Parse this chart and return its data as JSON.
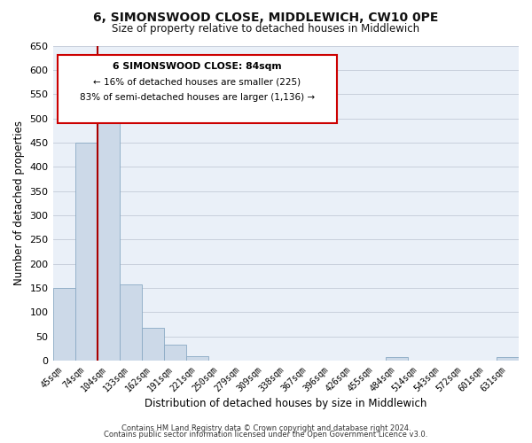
{
  "title": "6, SIMONSWOOD CLOSE, MIDDLEWICH, CW10 0PE",
  "subtitle": "Size of property relative to detached houses in Middlewich",
  "xlabel": "Distribution of detached houses by size in Middlewich",
  "ylabel": "Number of detached properties",
  "bar_labels": [
    "45sqm",
    "74sqm",
    "104sqm",
    "133sqm",
    "162sqm",
    "191sqm",
    "221sqm",
    "250sqm",
    "279sqm",
    "309sqm",
    "338sqm",
    "367sqm",
    "396sqm",
    "426sqm",
    "455sqm",
    "484sqm",
    "514sqm",
    "543sqm",
    "572sqm",
    "601sqm",
    "631sqm"
  ],
  "bar_values": [
    150,
    450,
    510,
    157,
    67,
    33,
    10,
    0,
    0,
    0,
    0,
    0,
    0,
    0,
    0,
    7,
    0,
    0,
    0,
    0,
    7
  ],
  "bar_color": "#ccd9e8",
  "bar_edge_color": "#8aaac4",
  "highlight_line_color": "#aa0000",
  "annotation_title": "6 SIMONSWOOD CLOSE: 84sqm",
  "annotation_line1": "← 16% of detached houses are smaller (225)",
  "annotation_line2": "83% of semi-detached houses are larger (1,136) →",
  "annotation_box_facecolor": "#ffffff",
  "annotation_box_edgecolor": "#cc0000",
  "ylim": [
    0,
    650
  ],
  "yticks": [
    0,
    50,
    100,
    150,
    200,
    250,
    300,
    350,
    400,
    450,
    500,
    550,
    600,
    650
  ],
  "footer1": "Contains HM Land Registry data © Crown copyright and database right 2024.",
  "footer2": "Contains public sector information licensed under the Open Government Licence v3.0.",
  "bg_color": "#ffffff",
  "plot_bg_color": "#eaf0f8",
  "grid_color": "#c8d0dc"
}
